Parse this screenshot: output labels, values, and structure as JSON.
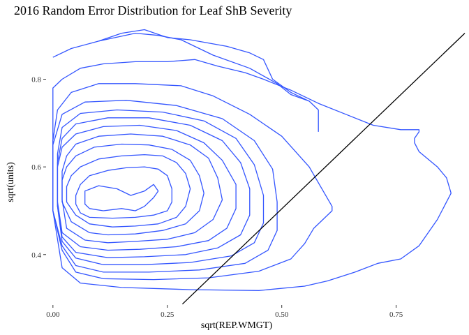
{
  "chart_data": {
    "type": "contour",
    "title": "2016 Random Error Distribution for Leaf ShB Severity",
    "xlabel": "sqrt(REP.WMGT)",
    "ylabel": "sqrt(units)",
    "x_ticks": [
      "0.00",
      "0.25",
      "0.50",
      "0.75"
    ],
    "x_tick_values": [
      0.0,
      0.25,
      0.5,
      0.75
    ],
    "y_ticks": [
      "0.4",
      "0.6",
      "0.8"
    ],
    "y_tick_values": [
      0.4,
      0.6,
      0.8
    ],
    "xlim": [
      -0.015,
      0.9
    ],
    "ylim": [
      0.285,
      0.925
    ],
    "grid": false,
    "contour_color": "#3355ff",
    "line_color": "#000000",
    "reference_line": {
      "x": [
        0.283,
        0.9
      ],
      "y": [
        0.287,
        0.905
      ]
    },
    "contours": [
      {
        "x": [
          0.11,
          0.15,
          0.18,
          0.2,
          0.22,
          0.23,
          0.22,
          0.2,
          0.17,
          0.14,
          0.1,
          0.07,
          0.07,
          0.07,
          0.08,
          0.11
        ],
        "y": [
          0.5,
          0.505,
          0.5,
          0.51,
          0.53,
          0.545,
          0.56,
          0.545,
          0.535,
          0.55,
          0.557,
          0.545,
          0.53,
          0.515,
          0.505,
          0.5
        ]
      },
      {
        "x": [
          0.13,
          0.18,
          0.22,
          0.25,
          0.26,
          0.26,
          0.25,
          0.23,
          0.2,
          0.16,
          0.12,
          0.08,
          0.06,
          0.05,
          0.05,
          0.06,
          0.08,
          0.13
        ],
        "y": [
          0.483,
          0.485,
          0.49,
          0.5,
          0.52,
          0.55,
          0.58,
          0.595,
          0.6,
          0.598,
          0.592,
          0.58,
          0.56,
          0.535,
          0.515,
          0.495,
          0.485,
          0.483
        ]
      },
      {
        "x": [
          0.13,
          0.18,
          0.23,
          0.27,
          0.29,
          0.3,
          0.29,
          0.27,
          0.24,
          0.2,
          0.15,
          0.1,
          0.06,
          0.04,
          0.03,
          0.03,
          0.05,
          0.08,
          0.13
        ],
        "y": [
          0.463,
          0.465,
          0.47,
          0.485,
          0.51,
          0.55,
          0.585,
          0.61,
          0.625,
          0.628,
          0.625,
          0.618,
          0.6,
          0.58,
          0.555,
          0.52,
          0.49,
          0.47,
          0.463
        ]
      },
      {
        "x": [
          0.12,
          0.18,
          0.24,
          0.29,
          0.32,
          0.33,
          0.32,
          0.3,
          0.26,
          0.21,
          0.15,
          0.09,
          0.05,
          0.03,
          0.02,
          0.02,
          0.04,
          0.08,
          0.12
        ],
        "y": [
          0.445,
          0.447,
          0.455,
          0.47,
          0.5,
          0.54,
          0.58,
          0.615,
          0.64,
          0.65,
          0.652,
          0.645,
          0.625,
          0.6,
          0.57,
          0.52,
          0.475,
          0.45,
          0.445
        ]
      },
      {
        "x": [
          0.12,
          0.18,
          0.25,
          0.31,
          0.35,
          0.37,
          0.36,
          0.34,
          0.3,
          0.24,
          0.17,
          0.1,
          0.05,
          0.03,
          0.02,
          0.02,
          0.03,
          0.07,
          0.12
        ],
        "y": [
          0.427,
          0.43,
          0.435,
          0.45,
          0.48,
          0.525,
          0.575,
          0.62,
          0.65,
          0.67,
          0.675,
          0.67,
          0.652,
          0.625,
          0.59,
          0.525,
          0.46,
          0.433,
          0.427
        ]
      },
      {
        "x": [
          0.12,
          0.19,
          0.27,
          0.34,
          0.38,
          0.4,
          0.4,
          0.37,
          0.33,
          0.27,
          0.19,
          0.11,
          0.05,
          0.02,
          0.01,
          0.01,
          0.02,
          0.06,
          0.12
        ],
        "y": [
          0.41,
          0.412,
          0.418,
          0.432,
          0.46,
          0.505,
          0.56,
          0.615,
          0.655,
          0.683,
          0.695,
          0.692,
          0.675,
          0.645,
          0.6,
          0.52,
          0.45,
          0.418,
          0.41
        ]
      },
      {
        "x": [
          0.12,
          0.2,
          0.29,
          0.36,
          0.41,
          0.43,
          0.43,
          0.41,
          0.37,
          0.3,
          0.21,
          0.12,
          0.05,
          0.02,
          0.01,
          0.01,
          0.02,
          0.05,
          0.12
        ],
        "y": [
          0.393,
          0.395,
          0.4,
          0.415,
          0.445,
          0.49,
          0.55,
          0.61,
          0.66,
          0.695,
          0.712,
          0.712,
          0.698,
          0.665,
          0.61,
          0.51,
          0.44,
          0.405,
          0.393
        ]
      },
      {
        "x": [
          0.11,
          0.2,
          0.3,
          0.39,
          0.44,
          0.46,
          0.46,
          0.44,
          0.4,
          0.33,
          0.24,
          0.14,
          0.06,
          0.02,
          0.01,
          0.01,
          0.02,
          0.05,
          0.11
        ],
        "y": [
          0.377,
          0.377,
          0.382,
          0.397,
          0.427,
          0.472,
          0.535,
          0.605,
          0.665,
          0.705,
          0.725,
          0.73,
          0.722,
          0.69,
          0.63,
          0.51,
          0.43,
          0.392,
          0.377
        ]
      },
      {
        "x": [
          0.11,
          0.21,
          0.32,
          0.42,
          0.47,
          0.49,
          0.49,
          0.48,
          0.44,
          0.37,
          0.27,
          0.16,
          0.07,
          0.02,
          0.0,
          0.0,
          0.02,
          0.05,
          0.11
        ],
        "y": [
          0.36,
          0.36,
          0.365,
          0.38,
          0.41,
          0.455,
          0.52,
          0.595,
          0.66,
          0.71,
          0.74,
          0.752,
          0.748,
          0.72,
          0.65,
          0.5,
          0.42,
          0.375,
          0.36
        ]
      },
      {
        "x": [
          0.11,
          0.22,
          0.34,
          0.45,
          0.52,
          0.55,
          0.57,
          0.61,
          0.61,
          0.56,
          0.5,
          0.43,
          0.35,
          0.28,
          0.18,
          0.1,
          0.04,
          0.01,
          0.0,
          0.0,
          0.02,
          0.05,
          0.11
        ],
        "y": [
          0.345,
          0.343,
          0.347,
          0.362,
          0.39,
          0.425,
          0.46,
          0.5,
          0.51,
          0.6,
          0.67,
          0.72,
          0.762,
          0.785,
          0.79,
          0.79,
          0.77,
          0.73,
          0.66,
          0.5,
          0.41,
          0.36,
          0.345
        ]
      },
      {
        "x": [
          0.15,
          0.3,
          0.45,
          0.55,
          0.6,
          0.66,
          0.71,
          0.76,
          0.8,
          0.84,
          0.87,
          0.86,
          0.84,
          0.8,
          0.79,
          0.79,
          0.8,
          0.8,
          0.76,
          0.7,
          0.64,
          0.58,
          0.52,
          0.46,
          0.42,
          0.36,
          0.31,
          0.25,
          0.18,
          0.11,
          0.06,
          0.02,
          0.0,
          0.0,
          0.02,
          0.06,
          0.15
        ],
        "y": [
          0.325,
          0.32,
          0.318,
          0.328,
          0.34,
          0.36,
          0.38,
          0.39,
          0.42,
          0.48,
          0.54,
          0.575,
          0.6,
          0.635,
          0.655,
          0.665,
          0.68,
          0.685,
          0.685,
          0.695,
          0.72,
          0.745,
          0.775,
          0.8,
          0.815,
          0.83,
          0.845,
          0.84,
          0.84,
          0.835,
          0.825,
          0.8,
          0.78,
          0.5,
          0.37,
          0.335,
          0.325
        ]
      },
      {
        "x": [
          0.1,
          0.18,
          0.23,
          0.28,
          0.35,
          0.43,
          0.49,
          0.52,
          0.56,
          0.58,
          0.58,
          0.58
        ],
        "y": [
          0.887,
          0.905,
          0.9,
          0.89,
          0.855,
          0.825,
          0.79,
          0.765,
          0.75,
          0.73,
          0.7,
          0.68
        ]
      },
      {
        "x": [
          0.0,
          0.04,
          0.1,
          0.15,
          0.2,
          0.25,
          0.3,
          0.38,
          0.43,
          0.46,
          0.48,
          0.52,
          0.56
        ],
        "y": [
          0.85,
          0.87,
          0.887,
          0.905,
          0.913,
          0.895,
          0.89,
          0.875,
          0.86,
          0.845,
          0.8,
          0.77,
          0.75
        ]
      }
    ]
  }
}
